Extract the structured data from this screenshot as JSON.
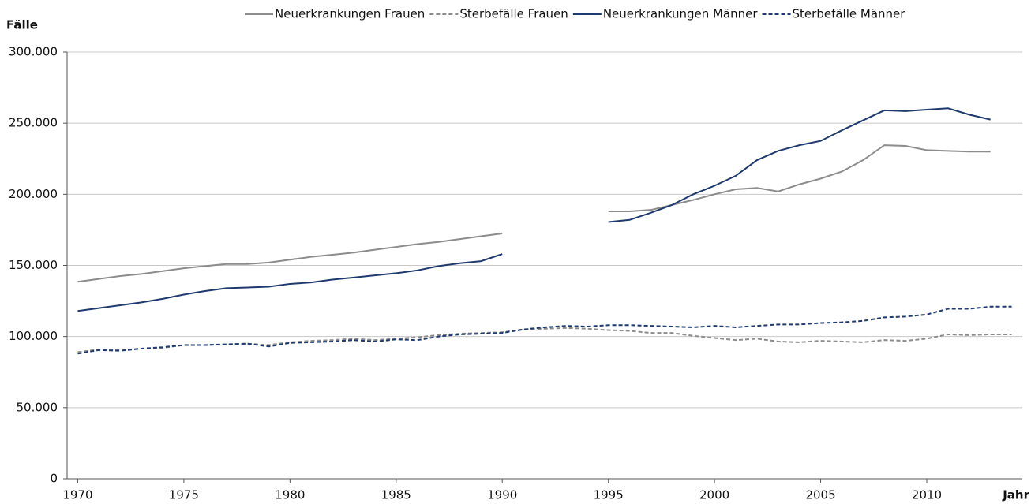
{
  "chart_data": {
    "type": "line",
    "y_label": "Fälle",
    "x_label": "Jahr",
    "x": [
      1970,
      1971,
      1972,
      1973,
      1974,
      1975,
      1976,
      1977,
      1978,
      1979,
      1980,
      1981,
      1982,
      1983,
      1984,
      1985,
      1986,
      1987,
      1988,
      1989,
      1990,
      1991,
      1992,
      1993,
      1994,
      1995,
      1996,
      1997,
      1998,
      1999,
      2000,
      2001,
      2002,
      2003,
      2004,
      2005,
      2006,
      2007,
      2008,
      2009,
      2010,
      2011,
      2012,
      2013,
      2014
    ],
    "series": [
      {
        "name": "Neuerkrankungen Frauen",
        "color": "#8c8c8c",
        "dash": false,
        "values": [
          138500,
          140500,
          142500,
          144000,
          146000,
          148000,
          149500,
          151000,
          151000,
          152000,
          154000,
          156000,
          157500,
          159000,
          161000,
          163000,
          165000,
          166500,
          168500,
          170500,
          172500,
          null,
          null,
          null,
          null,
          188000,
          188000,
          189000,
          192500,
          196000,
          200000,
          203500,
          204500,
          202000,
          207000,
          211000,
          216000,
          224000,
          234500,
          234000,
          231000,
          230500,
          230000,
          230000,
          null
        ]
      },
      {
        "name": "Sterbefälle Frauen",
        "color": "#8c8c8c",
        "dash": true,
        "values": [
          89000,
          91000,
          90500,
          91500,
          92000,
          94000,
          94000,
          94500,
          95000,
          94000,
          96000,
          97000,
          97500,
          98500,
          97500,
          98500,
          99500,
          101000,
          102000,
          102500,
          103000,
          105000,
          105500,
          106000,
          105500,
          104500,
          104000,
          102500,
          102500,
          100500,
          99000,
          97500,
          98500,
          96500,
          96000,
          97000,
          96500,
          96000,
          97500,
          97000,
          98500,
          101500,
          101000,
          101500,
          101500
        ]
      },
      {
        "name": "Neuerkrankungen Männer",
        "color": "#1f3a6e",
        "dash": false,
        "values": [
          118000,
          120000,
          122000,
          124000,
          126500,
          129500,
          132000,
          134000,
          134500,
          135000,
          137000,
          138000,
          140000,
          141500,
          143000,
          144500,
          146500,
          149500,
          151500,
          153000,
          158000,
          null,
          null,
          null,
          null,
          180500,
          182000,
          187000,
          192500,
          200000,
          206000,
          213000,
          224000,
          230500,
          234500,
          237500,
          245000,
          252000,
          259000,
          258500,
          259500,
          260500,
          256000,
          252500,
          null
        ]
      },
      {
        "name": "Sterbefälle Männer",
        "color": "#1f3a6e",
        "dash": true,
        "values": [
          88000,
          90500,
          90000,
          91500,
          92500,
          94000,
          94000,
          94500,
          95000,
          93000,
          95500,
          96000,
          96500,
          97500,
          96500,
          98000,
          97500,
          100000,
          101500,
          102000,
          102500,
          105000,
          106500,
          107500,
          107000,
          108000,
          108000,
          107500,
          107000,
          106500,
          107500,
          106500,
          107500,
          108500,
          108500,
          109500,
          110000,
          111000,
          113500,
          114000,
          115500,
          119500,
          119500,
          121000,
          121000
        ]
      }
    ],
    "xlim": [
      1969.5,
      2014.5
    ],
    "xticks": [
      1970,
      1975,
      1980,
      1985,
      1990,
      1995,
      2000,
      2005,
      2010
    ],
    "ylim": [
      0,
      300000
    ],
    "yticks": [
      0,
      {
        "value": 50000,
        "label": "50.000"
      },
      {
        "value": 100000,
        "label": "100.000"
      },
      {
        "value": 150000,
        "label": "150.000"
      },
      {
        "value": 200000,
        "label": "200.000"
      },
      {
        "value": 250000,
        "label": "250.000"
      },
      {
        "value": 300000,
        "label": "300.000"
      }
    ],
    "grid": true
  }
}
